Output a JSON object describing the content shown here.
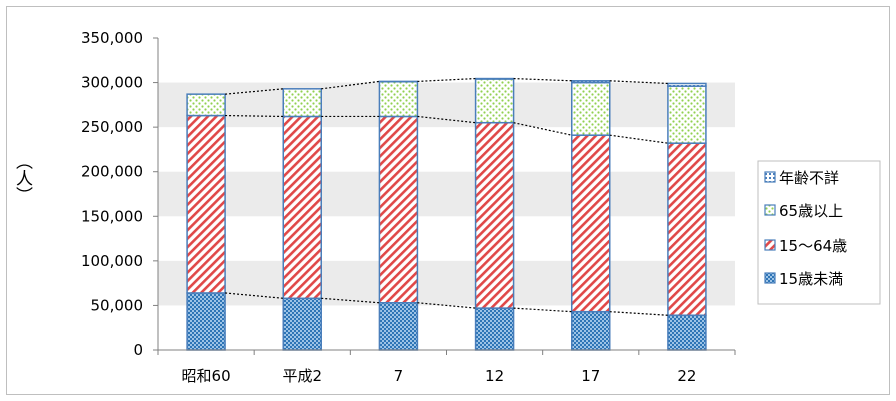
{
  "chart_data": {
    "type": "bar",
    "stacked": true,
    "categories": [
      "昭和60",
      "平成2",
      "7",
      "12",
      "17",
      "22"
    ],
    "series": [
      {
        "name": "15歳未満",
        "values": [
          64000,
          58000,
          53000,
          47000,
          43000,
          39000
        ]
      },
      {
        "name": "15～64歳",
        "values": [
          199000,
          204000,
          209000,
          208000,
          198000,
          193000
        ]
      },
      {
        "name": "65歳以上",
        "values": [
          24000,
          31000,
          39000,
          49000,
          59000,
          64000
        ]
      },
      {
        "name": "年齢不詳",
        "values": [
          0,
          0,
          300,
          500,
          2000,
          3000
        ]
      }
    ],
    "ylabel": "（人）",
    "ylim": [
      0,
      350000
    ],
    "yticks": [
      "0",
      "50,000",
      "100,000",
      "150,000",
      "200,000",
      "250,000",
      "300,000",
      "350,000"
    ],
    "ytick_values": [
      0,
      50000,
      100000,
      150000,
      200000,
      250000,
      300000,
      350000
    ],
    "grid": "alternating horizontal bands",
    "legend_position": "right",
    "legend_order": [
      "年齢不詳",
      "65歳以上",
      "15～64歳",
      "15歳未満"
    ],
    "colors": {
      "15歳未満": "#5b9bd5",
      "15～64歳": "#e04848",
      "65歳以上": "#92d050",
      "年齢不詳": "#4a7ebb",
      "outline": "#4a7ebb",
      "band": "#ebebeb"
    }
  }
}
